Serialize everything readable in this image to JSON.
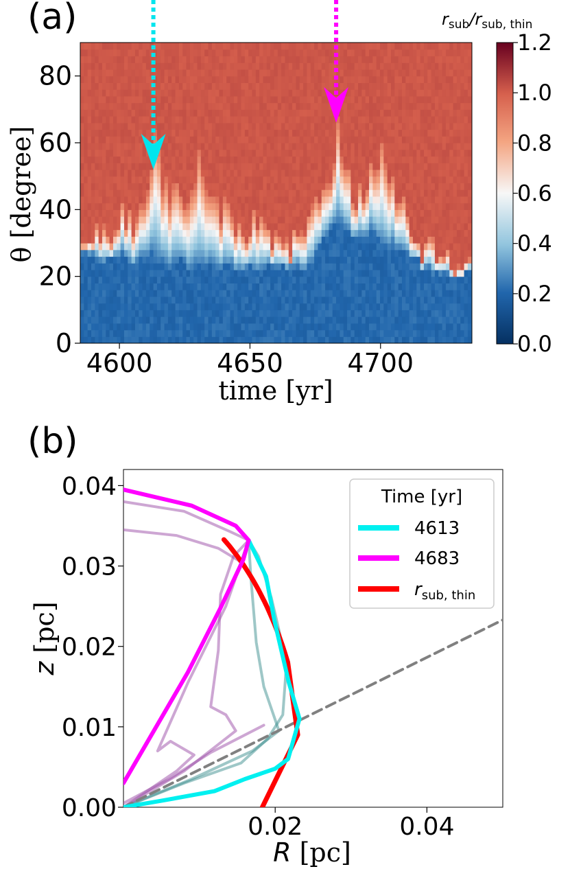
{
  "panel_a": {
    "label": "(a)",
    "colorbar_title_html": "r<tspan font-size='17' dy='5'>sub</tspan><tspan dy='-5'>/r</tspan><tspan font-size='17' dy='5'>sub, thin</tspan>",
    "colorbar_title": "r_sub/r_sub,thin",
    "arrow_colors": {
      "cyan": "#00e5ee",
      "magenta": "#ff00ff"
    },
    "colors": {
      "low": "#08306b",
      "mid": "#f7f7f7",
      "high": "#67001f",
      "background_high": "#ca4b3e",
      "background_low": "#2166ac"
    }
  },
  "panel_b": {
    "label": "(b)",
    "legend_title": "Time [yr]",
    "colors": {
      "cyan": "#00f0f0",
      "magenta": "#ff00ff",
      "red": "#ff0000",
      "grey": "#808080"
    }
  },
  "chart_data": [
    {
      "type": "heatmap",
      "title": "",
      "xlabel": "time [yr]",
      "ylabel": "θ [degree]",
      "xlim": [
        4585,
        4735
      ],
      "ylim": [
        0,
        90
      ],
      "xticks": [
        4600,
        4650,
        4700
      ],
      "yticks": [
        0,
        20,
        40,
        60,
        80
      ],
      "colorbar": {
        "label": "r_sub/r_sub,thin",
        "range": [
          0.0,
          1.2
        ],
        "ticks": [
          "0.0",
          "0.2",
          "0.4",
          "0.6",
          "0.8",
          "1.0",
          "1.2"
        ],
        "colormap": "RdBu_r"
      },
      "annotations": [
        {
          "type": "arrow",
          "x": 4613,
          "from_theta": 100,
          "to_theta": 52,
          "color": "cyan"
        },
        {
          "type": "arrow",
          "x": 4683,
          "from_theta": 100,
          "to_theta": 66,
          "color": "magenta"
        }
      ],
      "transition_theta_by_time": {
        "time": [
          4585,
          4590,
          4595,
          4600,
          4605,
          4610,
          4613,
          4618,
          4622,
          4626,
          4630,
          4635,
          4640,
          4645,
          4650,
          4655,
          4660,
          4665,
          4670,
          4675,
          4680,
          4683,
          4686,
          4690,
          4695,
          4700,
          4705,
          4710,
          4715,
          4720,
          4725,
          4730,
          4735
        ],
        "theta_low": [
          26,
          26,
          23,
          26,
          23,
          26,
          26,
          23,
          23,
          22,
          22,
          23,
          22,
          22,
          22,
          22,
          22,
          21,
          22,
          26,
          33,
          35,
          33,
          30,
          33,
          30,
          28,
          26,
          22,
          21,
          20,
          18,
          22
        ],
        "theta_high": [
          28,
          30,
          30,
          40,
          35,
          45,
          58,
          42,
          45,
          35,
          55,
          40,
          38,
          32,
          35,
          33,
          30,
          28,
          35,
          40,
          48,
          65,
          52,
          42,
          48,
          55,
          45,
          38,
          28,
          28,
          25,
          20,
          24
        ]
      }
    },
    {
      "type": "line",
      "title": "",
      "xlabel": "R [pc]",
      "ylabel": "z [pc]",
      "xlim": [
        0.0,
        0.05
      ],
      "ylim": [
        0.0,
        0.042
      ],
      "xticks": [
        "0.02",
        "0.04"
      ],
      "yticks": [
        "0.00",
        "0.01",
        "0.02",
        "0.03",
        "0.04"
      ],
      "legend": {
        "title": "Time [yr]",
        "placement": "top-right",
        "entries": [
          "4613",
          "4683",
          "r_sub,thin"
        ]
      },
      "series": [
        {
          "name": "4613",
          "color": "cyan",
          "width": 6,
          "points": [
            [
              0.0,
              0.0
            ],
            [
              0.005,
              0.0008
            ],
            [
              0.012,
              0.002
            ],
            [
              0.016,
              0.0035
            ],
            [
              0.02,
              0.0048
            ],
            [
              0.0217,
              0.006
            ],
            [
              0.0232,
              0.011
            ],
            [
              0.0218,
              0.0155
            ],
            [
              0.0199,
              0.0232
            ],
            [
              0.0188,
              0.0287
            ],
            [
              0.0165,
              0.0332
            ]
          ]
        },
        {
          "name": "4683",
          "color": "magenta",
          "width": 6,
          "points": [
            [
              0.0,
              0.003
            ],
            [
              0.0085,
              0.0168
            ],
            [
              0.0128,
              0.0248
            ],
            [
              0.0158,
              0.0308
            ],
            [
              0.0165,
              0.0332
            ],
            [
              0.0148,
              0.035
            ],
            [
              0.009,
              0.0375
            ],
            [
              0.0,
              0.0395
            ]
          ]
        },
        {
          "name": "r_sub,thin",
          "color": "red",
          "width": 7,
          "arc": {
            "radius": 0.0405,
            "theta_from_deg": 27,
            "theta_to_deg": 90,
            "end_at": [
              0.0183,
              0.0
            ]
          }
        },
        {
          "name": "",
          "color": "grey",
          "dashed": true,
          "width": 4,
          "points": [
            [
              0.0,
              0.0
            ],
            [
              0.05,
              0.0233
            ]
          ]
        },
        {
          "name": "",
          "color": "teal",
          "alpha": 0.5,
          "points": [
            [
              0.0,
              0.0
            ],
            [
              0.008,
              0.003
            ],
            [
              0.0155,
              0.0055
            ],
            [
              0.019,
              0.0085
            ],
            [
              0.021,
              0.0115
            ],
            [
              0.0215,
              0.018
            ],
            [
              0.0195,
              0.026
            ],
            [
              0.0178,
              0.0312
            ],
            [
              0.0165,
              0.0332
            ]
          ]
        },
        {
          "name": "",
          "color": "teal",
          "alpha": 0.5,
          "points": [
            [
              0.0,
              0.0
            ],
            [
              0.009,
              0.0035
            ],
            [
              0.017,
              0.007
            ],
            [
              0.0205,
              0.0095
            ],
            [
              0.0185,
              0.015
            ],
            [
              0.0175,
              0.0205
            ],
            [
              0.0168,
              0.0285
            ],
            [
              0.0165,
              0.0332
            ]
          ]
        },
        {
          "name": "",
          "color": "purple",
          "alpha": 0.5,
          "points": [
            [
              0.0,
              0.0
            ],
            [
              0.008,
              0.0045
            ],
            [
              0.0148,
              0.0095
            ],
            [
              0.0135,
              0.0115
            ],
            [
              0.0115,
              0.0125
            ],
            [
              0.0125,
              0.0195
            ],
            [
              0.0128,
              0.0265
            ],
            [
              0.0145,
              0.0312
            ],
            [
              0.0165,
              0.0332
            ]
          ]
        },
        {
          "name": "",
          "color": "purple",
          "alpha": 0.5,
          "points": [
            [
              0.0,
              0.0
            ],
            [
              0.007,
              0.0045
            ],
            [
              0.0093,
              0.0065
            ],
            [
              0.0062,
              0.0082
            ],
            [
              0.0045,
              0.007
            ],
            [
              0.0085,
              0.0155
            ],
            [
              0.0135,
              0.025
            ],
            [
              0.0165,
              0.0332
            ]
          ]
        },
        {
          "name": "",
          "color": "purple",
          "alpha": 0.5,
          "points": [
            [
              0.0,
              0.0345
            ],
            [
              0.007,
              0.0338
            ],
            [
              0.0125,
              0.0322
            ],
            [
              0.0155,
              0.0305
            ],
            [
              0.0165,
              0.0332
            ]
          ]
        },
        {
          "name": "",
          "color": "purple",
          "alpha": 0.5,
          "points": [
            [
              0.0,
              0.038
            ],
            [
              0.008,
              0.0368
            ],
            [
              0.014,
              0.0343
            ],
            [
              0.0165,
              0.0332
            ]
          ]
        },
        {
          "name": "",
          "color": "purple",
          "alpha": 0.5,
          "points": [
            [
              0.0,
              0.0005
            ],
            [
              0.006,
              0.0035
            ],
            [
              0.0115,
              0.0068
            ],
            [
              0.0185,
              0.0102
            ]
          ]
        }
      ]
    }
  ]
}
